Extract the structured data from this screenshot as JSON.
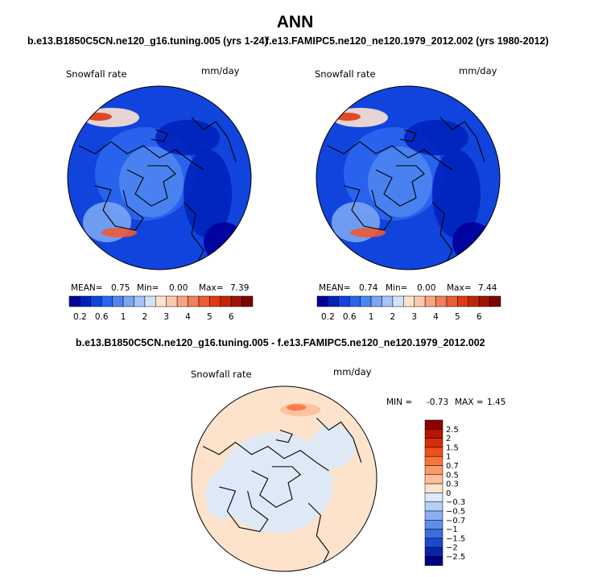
{
  "title": "ANN",
  "panels": [
    {
      "subtitle": "b.e13.B1850C5CN.ne120_g16.tuning.005 (yrs 1-24)",
      "variable": "Snowfall rate",
      "units": "mm/day",
      "stats": {
        "mean_label": "MEAN=",
        "mean": "0.75",
        "min_label": "Min=",
        "min": "0.00",
        "max_label": "Max=",
        "max": "7.39"
      }
    },
    {
      "subtitle": "f.e13.FAMIPC5.ne120_ne120.1979_2012.002 (yrs 1980-2012)",
      "variable": "Snowfall rate",
      "units": "mm/day",
      "stats": {
        "mean_label": "MEAN=",
        "mean": "0.74",
        "min_label": "Min=",
        "min": "0.00",
        "max_label": "Max=",
        "max": "7.44"
      }
    }
  ],
  "diff_panel": {
    "subtitle": "b.e13.B1850C5CN.ne120_g16.tuning.005 - f.e13.FAMIPC5.ne120_ne120.1979_2012.002",
    "variable": "Snowfall rate",
    "units": "mm/day",
    "stats": {
      "min_label": "MIN =",
      "min": "-0.73",
      "max_label": "MAX =",
      "max": "1.45"
    }
  },
  "chart_data": [
    {
      "type": "heatmap",
      "projection": "north-polar-stereographic",
      "variable": "Snowfall rate",
      "units": "mm/day",
      "mean": 0.75,
      "min": 0.0,
      "max": 7.39,
      "colorbar": {
        "orientation": "horizontal",
        "levels": [
          0.2,
          0.6,
          1,
          2,
          3,
          4,
          5,
          6
        ],
        "level_labels": [
          "0.2",
          "0.6",
          "1",
          "2",
          "3",
          "4",
          "5",
          "6"
        ],
        "colors": [
          "#000099",
          "#0022bb",
          "#1144dd",
          "#2b66ee",
          "#4d86f0",
          "#7aa6f3",
          "#a6c4f7",
          "#d2e2fb",
          "#fde4cf",
          "#fbc9ad",
          "#f7a484",
          "#f2805d",
          "#ec5a36",
          "#de3a14",
          "#c22506",
          "#a01403",
          "#7a0800"
        ]
      }
    },
    {
      "type": "heatmap",
      "projection": "north-polar-stereographic",
      "variable": "Snowfall rate",
      "units": "mm/day",
      "mean": 0.74,
      "min": 0.0,
      "max": 7.44,
      "colorbar": {
        "orientation": "horizontal",
        "levels": [
          0.2,
          0.6,
          1,
          2,
          3,
          4,
          5,
          6
        ],
        "level_labels": [
          "0.2",
          "0.6",
          "1",
          "2",
          "3",
          "4",
          "5",
          "6"
        ],
        "colors": [
          "#000099",
          "#0022bb",
          "#1144dd",
          "#2b66ee",
          "#4d86f0",
          "#7aa6f3",
          "#a6c4f7",
          "#d2e2fb",
          "#fde4cf",
          "#fbc9ad",
          "#f7a484",
          "#f2805d",
          "#ec5a36",
          "#de3a14",
          "#c22506",
          "#a01403",
          "#7a0800"
        ]
      }
    },
    {
      "type": "heatmap",
      "projection": "north-polar-stereographic",
      "variable": "Snowfall rate",
      "units": "mm/day",
      "min": -0.73,
      "max": 1.45,
      "colorbar": {
        "orientation": "vertical",
        "level_labels": [
          "2.5",
          "2",
          "1.5",
          "1",
          "0.7",
          "0.5",
          "0.3",
          "0",
          "−0.3",
          "−0.5",
          "−0.7",
          "−1",
          "−1.5",
          "−2",
          "−2.5"
        ],
        "colors": [
          "#8c0000",
          "#b81400",
          "#d92d06",
          "#ef4f1c",
          "#f8763d",
          "#fb9a66",
          "#fcbf98",
          "#fde3cc",
          "#dbe9fb",
          "#b4cff6",
          "#8ab0f0",
          "#5f8eea",
          "#3a6de3",
          "#1e48cc",
          "#0a24a8",
          "#000080"
        ]
      }
    }
  ]
}
